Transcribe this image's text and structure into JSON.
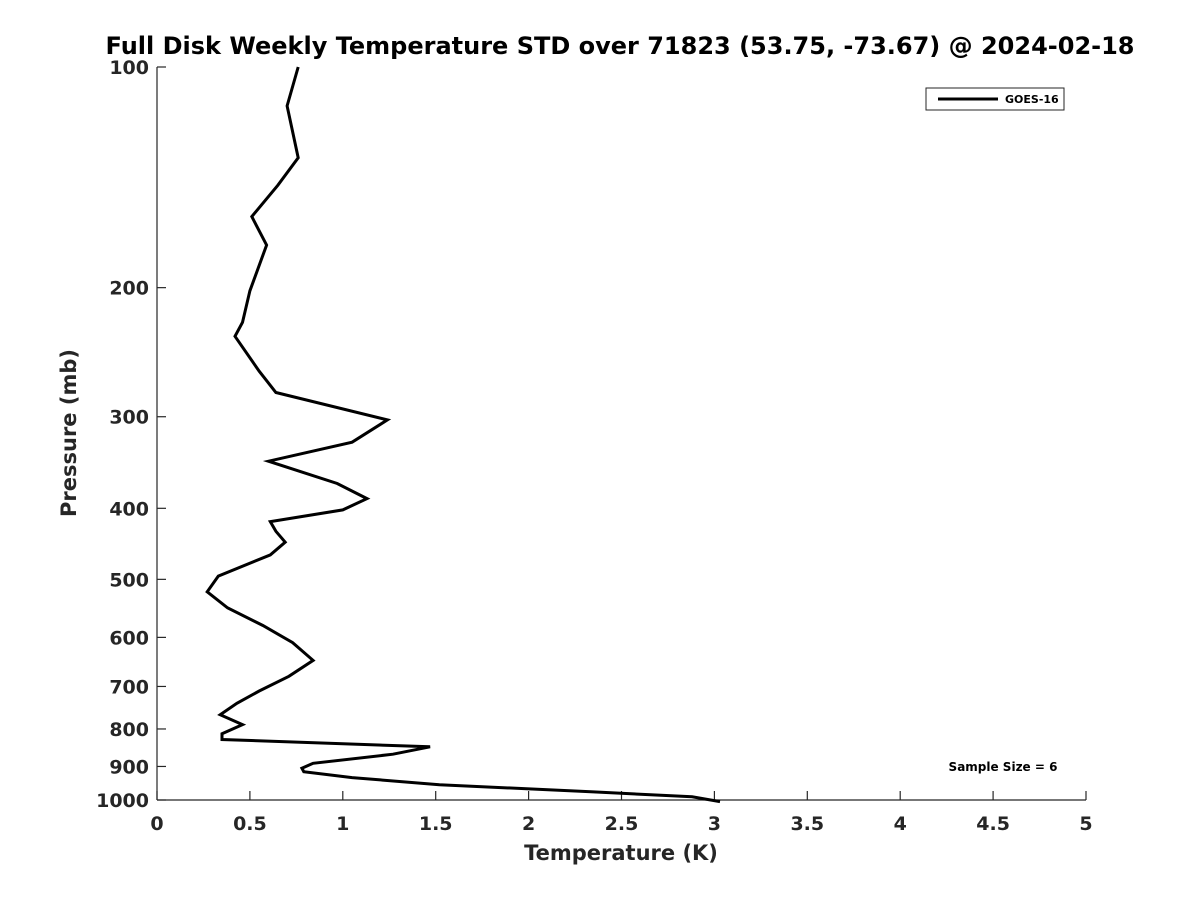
{
  "chart_data": {
    "type": "line",
    "title": "Full Disk Weekly Temperature STD over 71823 (53.75, -73.67) @ 2024-02-18",
    "xlabel": "Temperature (K)",
    "ylabel": "Pressure (mb)",
    "xlim": [
      0,
      5
    ],
    "ylim": [
      1000,
      100
    ],
    "yscale": "log",
    "xticks": [
      "0",
      "0.5",
      "1",
      "1.5",
      "2",
      "2.5",
      "3",
      "3.5",
      "4",
      "4.5",
      "5"
    ],
    "yticks": [
      "100",
      "200",
      "300",
      "400",
      "500",
      "600",
      "700",
      "800",
      "900",
      "1000"
    ],
    "grid": false,
    "legend_position": "top-right",
    "series": [
      {
        "name": "GOES-16",
        "color": "#000000",
        "x": [
          0.76,
          0.7,
          0.76,
          0.65,
          0.51,
          0.59,
          0.5,
          0.46,
          0.42,
          0.55,
          0.64,
          1.24,
          1.05,
          0.6,
          0.97,
          1.13,
          1.0,
          0.61,
          0.64,
          0.69,
          0.61,
          0.33,
          0.27,
          0.38,
          0.57,
          0.73,
          0.84,
          0.71,
          0.55,
          0.43,
          0.34,
          0.46,
          0.35,
          0.35,
          1.47,
          1.27,
          0.84,
          0.78,
          0.79,
          1.05,
          1.52,
          2.35,
          2.88,
          3.03
        ],
        "y": [
          100,
          113,
          133,
          145,
          160,
          175,
          202,
          223,
          233,
          260,
          278,
          303,
          325,
          345,
          370,
          388,
          402,
          417,
          430,
          445,
          463,
          495,
          520,
          547,
          578,
          610,
          645,
          678,
          710,
          738,
          765,
          789,
          812,
          827,
          846,
          866,
          891,
          905,
          915,
          932,
          953,
          975,
          990,
          1005
        ]
      }
    ],
    "annotations": [
      "Sample Size = 6"
    ]
  }
}
